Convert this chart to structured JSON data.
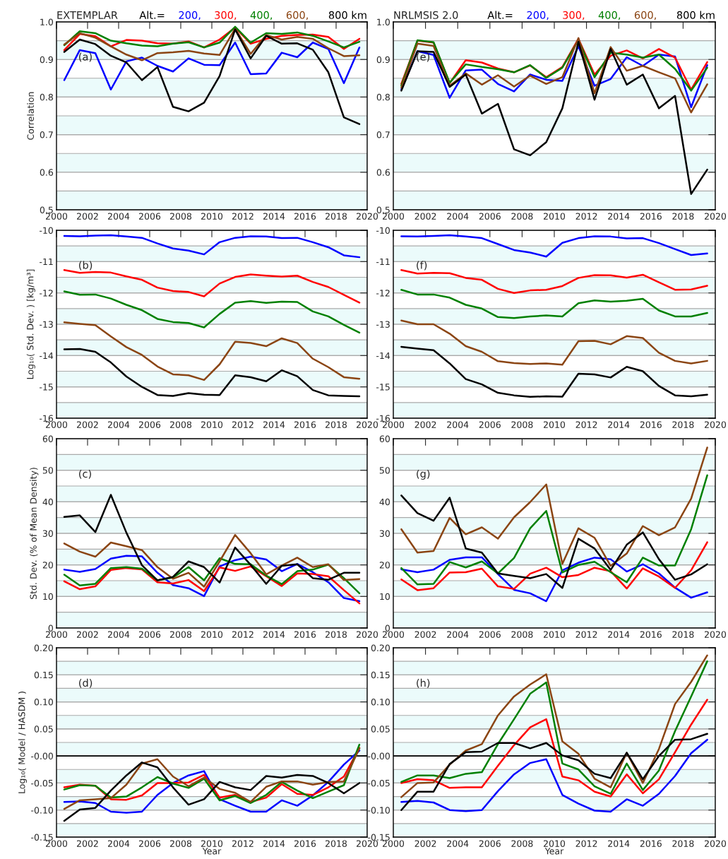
{
  "chart_data": [
    {
      "type": "line",
      "title": "EXTEMPLAR",
      "legend_title": "Alt.=",
      "legend": "top right",
      "ylabel": "Correlation",
      "annotations": [
        "(a)"
      ],
      "grid": "y",
      "x": [
        2000.5,
        2001.5,
        2002.5,
        2003.5,
        2004.5,
        2005.5,
        2006.5,
        2007.5,
        2008.5,
        2009.5,
        2010.5,
        2011.5,
        2012.5,
        2013.5,
        2014.5,
        2015.5,
        2016.5,
        2017.5,
        2018.5,
        2019.5
      ],
      "xlim": [
        2000,
        2020
      ],
      "xticks": [
        2000,
        2002,
        2004,
        2006,
        2008,
        2010,
        2012,
        2014,
        2016,
        2018,
        2020
      ],
      "ylim": [
        0.5,
        1.0
      ],
      "yticks": [
        0.5,
        0.6,
        0.7,
        0.8,
        0.9,
        {
          "value": 1.0,
          "label": "1.0"
        }
      ],
      "bands": [
        {
          "axis": "y",
          "from": 0.5,
          "to": 0.55,
          "color": "#ebfbfb"
        },
        {
          "axis": "y",
          "from": 0.6,
          "to": 0.65,
          "color": "#ebfbfb"
        },
        {
          "axis": "y",
          "from": 0.7,
          "to": 0.75,
          "color": "#ebfbfb"
        },
        {
          "axis": "y",
          "from": 0.8,
          "to": 0.85,
          "color": "#ebfbfb"
        },
        {
          "axis": "y",
          "from": 0.9,
          "to": 0.95,
          "color": "#ebfbfb"
        }
      ],
      "series": [
        {
          "name": "200,",
          "color": "#0000ff",
          "values": [
            0.845,
            0.925,
            0.917,
            0.82,
            0.895,
            0.905,
            0.883,
            0.868,
            0.903,
            0.886,
            0.885,
            0.945,
            0.861,
            0.863,
            0.918,
            0.906,
            0.945,
            0.928,
            0.837,
            0.932
          ]
        },
        {
          "name": "300,",
          "color": "#ff0000",
          "values": [
            0.925,
            0.968,
            0.962,
            0.935,
            0.952,
            0.95,
            0.943,
            0.942,
            0.948,
            0.932,
            0.953,
            0.985,
            0.942,
            0.955,
            0.963,
            0.965,
            0.966,
            0.96,
            0.928,
            0.955
          ]
        },
        {
          "name": "400,",
          "color": "#008000",
          "values": [
            0.938,
            0.975,
            0.97,
            0.95,
            0.943,
            0.937,
            0.935,
            0.942,
            0.946,
            0.932,
            0.945,
            0.987,
            0.945,
            0.97,
            0.968,
            0.972,
            0.963,
            0.948,
            0.932,
            0.947
          ]
        },
        {
          "name": "600,",
          "color": "#8b4513",
          "values": [
            0.94,
            0.97,
            0.958,
            0.935,
            0.913,
            0.898,
            0.917,
            0.919,
            0.923,
            0.916,
            0.912,
            0.982,
            0.915,
            0.965,
            0.953,
            0.96,
            0.955,
            0.93,
            0.909,
            0.911
          ]
        },
        {
          "name": "800 km",
          "color": "#000000",
          "values": [
            0.92,
            0.953,
            0.941,
            0.91,
            0.892,
            0.845,
            0.88,
            0.774,
            0.762,
            0.785,
            0.856,
            0.98,
            0.903,
            0.963,
            0.942,
            0.943,
            0.926,
            0.866,
            0.746,
            0.728
          ]
        }
      ]
    },
    {
      "type": "line",
      "title": "NRLMSIS 2.0",
      "legend_title": "Alt.=",
      "legend": "top right",
      "annotations": [
        "(e)"
      ],
      "grid": "y",
      "x": [
        2000.5,
        2001.5,
        2002.5,
        2003.5,
        2004.5,
        2005.5,
        2006.5,
        2007.5,
        2008.5,
        2009.5,
        2010.5,
        2011.5,
        2012.5,
        2013.5,
        2014.5,
        2015.5,
        2016.5,
        2017.5,
        2018.5,
        2019.5
      ],
      "xlim": [
        2000,
        2020
      ],
      "xticks": [
        2000,
        2002,
        2004,
        2006,
        2008,
        2010,
        2012,
        2014,
        2016,
        2018,
        2020
      ],
      "ylim": [
        0.5,
        1.0
      ],
      "yticks": [
        0.5,
        0.6,
        0.7,
        0.8,
        0.9,
        {
          "value": 1.0,
          "label": "1.0"
        }
      ],
      "bands": [
        {
          "axis": "y",
          "from": 0.5,
          "to": 0.55,
          "color": "#ebfbfb"
        },
        {
          "axis": "y",
          "from": 0.6,
          "to": 0.65,
          "color": "#ebfbfb"
        },
        {
          "axis": "y",
          "from": 0.7,
          "to": 0.75,
          "color": "#ebfbfb"
        },
        {
          "axis": "y",
          "from": 0.8,
          "to": 0.85,
          "color": "#ebfbfb"
        },
        {
          "axis": "y",
          "from": 0.9,
          "to": 0.95,
          "color": "#ebfbfb"
        }
      ],
      "series": [
        {
          "name": "200,",
          "color": "#0000ff",
          "values": [
            0.82,
            0.922,
            0.912,
            0.798,
            0.871,
            0.873,
            0.835,
            0.815,
            0.86,
            0.846,
            0.843,
            0.935,
            0.83,
            0.848,
            0.906,
            0.883,
            0.913,
            0.908,
            0.773,
            0.885
          ]
        },
        {
          "name": "300,",
          "color": "#ff0000",
          "values": [
            0.835,
            0.95,
            0.945,
            0.837,
            0.898,
            0.892,
            0.876,
            0.866,
            0.884,
            0.853,
            0.88,
            0.955,
            0.86,
            0.91,
            0.924,
            0.903,
            0.928,
            0.905,
            0.82,
            0.893
          ]
        },
        {
          "name": "400,",
          "color": "#008000",
          "values": [
            0.83,
            0.951,
            0.946,
            0.838,
            0.887,
            0.88,
            0.874,
            0.866,
            0.885,
            0.851,
            0.878,
            0.952,
            0.853,
            0.918,
            0.913,
            0.905,
            0.913,
            0.875,
            0.817,
            0.878
          ]
        },
        {
          "name": "600,",
          "color": "#8b4513",
          "values": [
            0.825,
            0.942,
            0.936,
            0.83,
            0.863,
            0.833,
            0.858,
            0.828,
            0.857,
            0.835,
            0.853,
            0.957,
            0.81,
            0.933,
            0.87,
            0.883,
            0.866,
            0.85,
            0.759,
            0.834
          ]
        },
        {
          "name": "800 km",
          "color": "#000000",
          "values": [
            0.817,
            0.922,
            0.92,
            0.827,
            0.86,
            0.756,
            0.782,
            0.661,
            0.645,
            0.68,
            0.77,
            0.947,
            0.793,
            0.928,
            0.833,
            0.86,
            0.77,
            0.803,
            0.542,
            0.607
          ]
        }
      ]
    },
    {
      "type": "line",
      "ylabel": "Log₁₀( Std. Dev. ) [kg/m³]",
      "annotations": [
        "(b)"
      ],
      "grid": "y",
      "x": [
        2000.5,
        2001.5,
        2002.5,
        2003.5,
        2004.5,
        2005.5,
        2006.5,
        2007.5,
        2008.5,
        2009.5,
        2010.5,
        2011.5,
        2012.5,
        2013.5,
        2014.5,
        2015.5,
        2016.5,
        2017.5,
        2018.5,
        2019.5
      ],
      "xlim": [
        2000,
        2020
      ],
      "xticks": [
        2000,
        2002,
        2004,
        2006,
        2008,
        2010,
        2012,
        2014,
        2016,
        2018,
        2020
      ],
      "ylim": [
        -16,
        -10
      ],
      "yticks": [
        -16,
        -15,
        -14,
        -13,
        -12,
        -11,
        -10
      ],
      "bands": [
        {
          "axis": "y",
          "from": -16,
          "to": -15.5,
          "color": "#ebfbfb"
        },
        {
          "axis": "y",
          "from": -15,
          "to": -14.5,
          "color": "#ebfbfb"
        },
        {
          "axis": "y",
          "from": -14,
          "to": -13.5,
          "color": "#ebfbfb"
        },
        {
          "axis": "y",
          "from": -13,
          "to": -12.5,
          "color": "#ebfbfb"
        },
        {
          "axis": "y",
          "from": -12,
          "to": -11.5,
          "color": "#ebfbfb"
        },
        {
          "axis": "y",
          "from": -11,
          "to": -10.5,
          "color": "#ebfbfb"
        }
      ],
      "series": [
        {
          "color": "#0000ff",
          "values": [
            -10.18,
            -10.19,
            -10.17,
            -10.16,
            -10.2,
            -10.24,
            -10.42,
            -10.58,
            -10.65,
            -10.77,
            -10.38,
            -10.24,
            -10.19,
            -10.2,
            -10.25,
            -10.24,
            -10.38,
            -10.54,
            -10.8,
            -10.86
          ]
        },
        {
          "color": "#ff0000",
          "values": [
            -11.27,
            -11.36,
            -11.33,
            -11.35,
            -11.47,
            -11.58,
            -11.83,
            -11.94,
            -11.97,
            -12.11,
            -11.7,
            -11.49,
            -11.41,
            -11.45,
            -11.48,
            -11.45,
            -11.65,
            -11.81,
            -12.06,
            -12.31
          ]
        },
        {
          "color": "#008000",
          "values": [
            -11.95,
            -12.06,
            -12.05,
            -12.18,
            -12.38,
            -12.55,
            -12.83,
            -12.93,
            -12.96,
            -13.1,
            -12.67,
            -12.31,
            -12.26,
            -12.32,
            -12.28,
            -12.29,
            -12.59,
            -12.75,
            -13.02,
            -13.27
          ]
        },
        {
          "color": "#8b4513",
          "values": [
            -12.94,
            -12.99,
            -13.03,
            -13.39,
            -13.73,
            -13.98,
            -14.35,
            -14.6,
            -14.63,
            -14.78,
            -14.28,
            -13.56,
            -13.6,
            -13.7,
            -13.45,
            -13.6,
            -14.1,
            -14.37,
            -14.69,
            -14.74
          ]
        },
        {
          "color": "#000000",
          "values": [
            -13.8,
            -13.79,
            -13.88,
            -14.22,
            -14.67,
            -15.0,
            -15.26,
            -15.29,
            -15.2,
            -15.25,
            -15.26,
            -14.63,
            -14.69,
            -14.82,
            -14.47,
            -14.66,
            -15.1,
            -15.27,
            -15.29,
            -15.3
          ]
        }
      ]
    },
    {
      "type": "line",
      "annotations": [
        "(f)"
      ],
      "grid": "y",
      "x": [
        2000.5,
        2001.5,
        2002.5,
        2003.5,
        2004.5,
        2005.5,
        2006.5,
        2007.5,
        2008.5,
        2009.5,
        2010.5,
        2011.5,
        2012.5,
        2013.5,
        2014.5,
        2015.5,
        2016.5,
        2017.5,
        2018.5,
        2019.5
      ],
      "xlim": [
        2000,
        2020
      ],
      "xticks": [
        2000,
        2002,
        2004,
        2006,
        2008,
        2010,
        2012,
        2014,
        2016,
        2018,
        2020
      ],
      "ylim": [
        -16,
        -10
      ],
      "yticks": [
        -16,
        -15,
        -14,
        -13,
        -12,
        -11,
        -10
      ],
      "bands": [
        {
          "axis": "y",
          "from": -16,
          "to": -15.5,
          "color": "#ebfbfb"
        },
        {
          "axis": "y",
          "from": -15,
          "to": -14.5,
          "color": "#ebfbfb"
        },
        {
          "axis": "y",
          "from": -14,
          "to": -13.5,
          "color": "#ebfbfb"
        },
        {
          "axis": "y",
          "from": -13,
          "to": -12.5,
          "color": "#ebfbfb"
        },
        {
          "axis": "y",
          "from": -12,
          "to": -11.5,
          "color": "#ebfbfb"
        },
        {
          "axis": "y",
          "from": -11,
          "to": -10.5,
          "color": "#ebfbfb"
        }
      ],
      "series": [
        {
          "color": "#0000ff",
          "values": [
            -10.19,
            -10.2,
            -10.18,
            -10.16,
            -10.2,
            -10.25,
            -10.44,
            -10.63,
            -10.71,
            -10.84,
            -10.4,
            -10.25,
            -10.19,
            -10.2,
            -10.26,
            -10.25,
            -10.41,
            -10.6,
            -10.79,
            -10.74
          ]
        },
        {
          "color": "#ff0000",
          "values": [
            -11.27,
            -11.38,
            -11.36,
            -11.37,
            -11.52,
            -11.58,
            -11.87,
            -12.0,
            -11.92,
            -11.9,
            -11.78,
            -11.52,
            -11.43,
            -11.44,
            -11.51,
            -11.42,
            -11.66,
            -11.9,
            -11.89,
            -11.77
          ]
        },
        {
          "color": "#008000",
          "values": [
            -11.9,
            -12.05,
            -12.05,
            -12.15,
            -12.38,
            -12.5,
            -12.77,
            -12.8,
            -12.75,
            -12.72,
            -12.75,
            -12.33,
            -12.24,
            -12.28,
            -12.25,
            -12.19,
            -12.56,
            -12.75,
            -12.75,
            -12.64
          ]
        },
        {
          "color": "#8b4513",
          "values": [
            -12.88,
            -13.0,
            -13.0,
            -13.3,
            -13.7,
            -13.88,
            -14.18,
            -14.24,
            -14.27,
            -14.25,
            -14.29,
            -13.54,
            -13.53,
            -13.64,
            -13.38,
            -13.44,
            -13.91,
            -14.17,
            -14.25,
            -14.17
          ]
        },
        {
          "color": "#000000",
          "values": [
            -13.72,
            -13.78,
            -13.83,
            -14.25,
            -14.75,
            -14.92,
            -15.19,
            -15.27,
            -15.32,
            -15.3,
            -15.31,
            -14.58,
            -14.6,
            -14.7,
            -14.36,
            -14.5,
            -14.97,
            -15.27,
            -15.3,
            -15.25
          ]
        }
      ]
    },
    {
      "type": "line",
      "ylabel": "Std. Dev. (% of Mean Density)",
      "annotations": [
        "(c)"
      ],
      "grid": "y",
      "x": [
        2000.5,
        2001.5,
        2002.5,
        2003.5,
        2004.5,
        2005.5,
        2006.5,
        2007.5,
        2008.5,
        2009.5,
        2010.5,
        2011.5,
        2012.5,
        2013.5,
        2014.5,
        2015.5,
        2016.5,
        2017.5,
        2018.5,
        2019.5
      ],
      "xlim": [
        2000,
        2020
      ],
      "xticks": [
        2000,
        2002,
        2004,
        2006,
        2008,
        2010,
        2012,
        2014,
        2016,
        2018,
        2020
      ],
      "ylim": [
        0,
        60
      ],
      "yticks": [
        0,
        10,
        20,
        30,
        40,
        50,
        60
      ],
      "bands": [
        {
          "axis": "y",
          "from": 0,
          "to": 5,
          "color": "#ebfbfb"
        },
        {
          "axis": "y",
          "from": 10,
          "to": 15,
          "color": "#ebfbfb"
        },
        {
          "axis": "y",
          "from": 20,
          "to": 25,
          "color": "#ebfbfb"
        },
        {
          "axis": "y",
          "from": 30,
          "to": 35,
          "color": "#ebfbfb"
        },
        {
          "axis": "y",
          "from": 40,
          "to": 45,
          "color": "#ebfbfb"
        },
        {
          "axis": "y",
          "from": 50,
          "to": 55,
          "color": "#ebfbfb"
        }
      ],
      "series": [
        {
          "color": "#0000ff",
          "values": [
            18.5,
            17.8,
            18.7,
            22,
            22.9,
            22.7,
            17.5,
            13.6,
            12.6,
            10.1,
            19.5,
            21.5,
            22.6,
            21.7,
            18,
            20.3,
            17.7,
            14.5,
            9.5,
            8.5
          ]
        },
        {
          "color": "#ff0000",
          "values": [
            14.8,
            12.3,
            13.2,
            18.4,
            19,
            18.6,
            14.5,
            14.1,
            15.2,
            11.7,
            19.2,
            18.1,
            19.5,
            16.4,
            13.3,
            17.3,
            17.1,
            16.4,
            12,
            7.8
          ]
        },
        {
          "color": "#008000",
          "values": [
            16.9,
            13.5,
            14,
            19,
            19.3,
            18.8,
            15.1,
            16,
            19.3,
            15.1,
            22.1,
            20.3,
            20.2,
            16.6,
            13.9,
            18,
            18.5,
            20.1,
            15.8,
            11
          ]
        },
        {
          "color": "#8b4513",
          "values": [
            26.8,
            24.2,
            22.6,
            27.1,
            25.9,
            24.7,
            19.3,
            15.6,
            17.5,
            13.1,
            21.1,
            29.5,
            23.7,
            17,
            19.8,
            22.3,
            19.3,
            20.2,
            15.2,
            15.5
          ]
        },
        {
          "color": "#000000",
          "values": [
            35.2,
            35.7,
            30.4,
            42.2,
            30.2,
            19.9,
            15.1,
            16.2,
            21.1,
            19.3,
            14.4,
            25.5,
            20,
            14,
            19.7,
            20.2,
            15.8,
            15.3,
            17.5,
            17.5
          ]
        }
      ]
    },
    {
      "type": "line",
      "annotations": [
        "(g)"
      ],
      "grid": "y",
      "x": [
        2000.5,
        2001.5,
        2002.5,
        2003.5,
        2004.5,
        2005.5,
        2006.5,
        2007.5,
        2008.5,
        2009.5,
        2010.5,
        2011.5,
        2012.5,
        2013.5,
        2014.5,
        2015.5,
        2016.5,
        2017.5,
        2018.5,
        2019.5
      ],
      "xlim": [
        2000,
        2020
      ],
      "xticks": [
        2000,
        2002,
        2004,
        2006,
        2008,
        2010,
        2012,
        2014,
        2016,
        2018,
        2020
      ],
      "ylim": [
        0,
        60
      ],
      "yticks": [
        0,
        10,
        20,
        30,
        40,
        50,
        60
      ],
      "bands": [
        {
          "axis": "y",
          "from": 0,
          "to": 5,
          "color": "#ebfbfb"
        },
        {
          "axis": "y",
          "from": 10,
          "to": 15,
          "color": "#ebfbfb"
        },
        {
          "axis": "y",
          "from": 20,
          "to": 25,
          "color": "#ebfbfb"
        },
        {
          "axis": "y",
          "from": 30,
          "to": 35,
          "color": "#ebfbfb"
        },
        {
          "axis": "y",
          "from": 40,
          "to": 45,
          "color": "#ebfbfb"
        },
        {
          "axis": "y",
          "from": 50,
          "to": 55,
          "color": "#ebfbfb"
        }
      ],
      "series": [
        {
          "color": "#0000ff",
          "values": [
            18.6,
            17.7,
            18.5,
            21.6,
            22.4,
            22.4,
            17.1,
            12.1,
            11,
            8.5,
            18.3,
            20.7,
            22.3,
            21.8,
            17.9,
            20.2,
            17.3,
            12.8,
            9.6,
            11.3
          ]
        },
        {
          "color": "#ff0000",
          "values": [
            15.4,
            12,
            12.6,
            17.6,
            17.7,
            18.8,
            13.2,
            12.4,
            17.2,
            19.1,
            16.1,
            16.8,
            19.1,
            18,
            12.5,
            18.9,
            16.3,
            12.7,
            18.3,
            27.2
          ]
        },
        {
          "color": "#008000",
          "values": [
            19,
            13.8,
            14,
            20.9,
            19.2,
            21.1,
            17.3,
            22.2,
            31.6,
            37.1,
            17.6,
            20,
            21,
            17.7,
            14.5,
            22.3,
            19.8,
            19.8,
            31.3,
            48.4
          ]
        },
        {
          "color": "#8b4513",
          "values": [
            31.3,
            23.9,
            24.4,
            34.9,
            29.7,
            31.9,
            28.3,
            35.1,
            39.9,
            45.5,
            20.3,
            31.6,
            28.6,
            19.7,
            23.6,
            32.3,
            29.4,
            31.9,
            41,
            57.2
          ]
        },
        {
          "color": "#000000",
          "values": [
            42,
            36.4,
            34,
            41.3,
            25.2,
            23.9,
            17.3,
            16.5,
            15.8,
            17.1,
            12.7,
            28.3,
            25.2,
            18.4,
            26.4,
            30.3,
            21.8,
            15.3,
            17,
            20.2
          ]
        }
      ]
    },
    {
      "type": "line",
      "ylabel": "Log₁₀( Model / HASDM )",
      "xlabel": "Year",
      "annotations": [
        "(d)"
      ],
      "grid": "y",
      "x": [
        2000.5,
        2001.5,
        2002.5,
        2003.5,
        2004.5,
        2005.5,
        2006.5,
        2007.5,
        2008.5,
        2009.5,
        2010.5,
        2011.5,
        2012.5,
        2013.5,
        2014.5,
        2015.5,
        2016.5,
        2017.5,
        2018.5,
        2019.5
      ],
      "xlim": [
        2000,
        2020
      ],
      "xticks": [
        2000,
        2002,
        2004,
        2006,
        2008,
        2010,
        2012,
        2014,
        2016,
        2018,
        2020
      ],
      "ylim": [
        -0.15,
        0.2
      ],
      "yticks": [
        -0.15,
        {
          "value": -0.1,
          "label": "-0.10"
        },
        -0.05,
        {
          "value": 0,
          "label": "-0.00"
        },
        0.05,
        {
          "value": 0.1,
          "label": "0.10"
        },
        0.15,
        {
          "value": 0.2,
          "label": "0.20"
        }
      ],
      "ref_lines": [
        {
          "axis": "y",
          "value": 0,
          "color": "#000000"
        }
      ],
      "bands": [
        {
          "axis": "y",
          "from": -0.15,
          "to": -0.125,
          "color": "#ebfbfb"
        },
        {
          "axis": "y",
          "from": -0.1,
          "to": -0.075,
          "color": "#ebfbfb"
        },
        {
          "axis": "y",
          "from": -0.05,
          "to": -0.025,
          "color": "#ebfbfb"
        },
        {
          "axis": "y",
          "from": 0,
          "to": 0.025,
          "color": "#ebfbfb"
        },
        {
          "axis": "y",
          "from": 0.05,
          "to": 0.075,
          "color": "#ebfbfb"
        },
        {
          "axis": "y",
          "from": 0.1,
          "to": 0.125,
          "color": "#ebfbfb"
        },
        {
          "axis": "y",
          "from": 0.15,
          "to": 0.175,
          "color": "#ebfbfb"
        }
      ],
      "series": [
        {
          "color": "#0000ff",
          "values": [
            -0.085,
            -0.084,
            -0.087,
            -0.103,
            -0.105,
            -0.103,
            -0.072,
            -0.05,
            -0.036,
            -0.028,
            -0.08,
            -0.092,
            -0.103,
            -0.103,
            -0.082,
            -0.092,
            -0.073,
            -0.048,
            -0.016,
            0.01
          ]
        },
        {
          "color": "#ff0000",
          "values": [
            -0.058,
            -0.053,
            -0.055,
            -0.08,
            -0.081,
            -0.073,
            -0.05,
            -0.05,
            -0.049,
            -0.035,
            -0.077,
            -0.072,
            -0.085,
            -0.077,
            -0.052,
            -0.07,
            -0.072,
            -0.058,
            -0.038,
            0.015
          ]
        },
        {
          "color": "#008000",
          "values": [
            -0.062,
            -0.054,
            -0.055,
            -0.077,
            -0.075,
            -0.058,
            -0.039,
            -0.051,
            -0.059,
            -0.042,
            -0.082,
            -0.074,
            -0.087,
            -0.072,
            -0.048,
            -0.064,
            -0.078,
            -0.066,
            -0.054,
            0.021
          ]
        },
        {
          "color": "#8b4513",
          "values": [
            -0.098,
            -0.082,
            -0.08,
            -0.078,
            -0.053,
            -0.014,
            -0.006,
            -0.038,
            -0.056,
            -0.04,
            -0.061,
            -0.068,
            -0.085,
            -0.057,
            -0.047,
            -0.047,
            -0.053,
            -0.048,
            -0.047,
            0.014
          ]
        },
        {
          "color": "#000000",
          "values": [
            -0.12,
            -0.099,
            -0.096,
            -0.064,
            -0.036,
            -0.012,
            -0.021,
            -0.058,
            -0.09,
            -0.08,
            -0.048,
            -0.058,
            -0.063,
            -0.037,
            -0.04,
            -0.035,
            -0.037,
            -0.05,
            -0.069,
            -0.05
          ]
        }
      ]
    },
    {
      "type": "line",
      "xlabel": "Year",
      "annotations": [
        "(h)"
      ],
      "grid": "y",
      "x": [
        2000.5,
        2001.5,
        2002.5,
        2003.5,
        2004.5,
        2005.5,
        2006.5,
        2007.5,
        2008.5,
        2009.5,
        2010.5,
        2011.5,
        2012.5,
        2013.5,
        2014.5,
        2015.5,
        2016.5,
        2017.5,
        2018.5,
        2019.5
      ],
      "xlim": [
        2000,
        2020
      ],
      "xticks": [
        2000,
        2002,
        2004,
        2006,
        2008,
        2010,
        2012,
        2014,
        2016,
        2018,
        2020
      ],
      "ylim": [
        -0.15,
        0.2
      ],
      "yticks": [
        -0.15,
        {
          "value": -0.1,
          "label": "-0.10"
        },
        -0.05,
        {
          "value": 0,
          "label": "-0.00"
        },
        0.05,
        {
          "value": 0.1,
          "label": "0.10"
        },
        0.15,
        {
          "value": 0.2,
          "label": "0.20"
        }
      ],
      "ref_lines": [
        {
          "axis": "y",
          "value": 0,
          "color": "#000000"
        }
      ],
      "bands": [
        {
          "axis": "y",
          "from": -0.15,
          "to": -0.125,
          "color": "#ebfbfb"
        },
        {
          "axis": "y",
          "from": -0.1,
          "to": -0.075,
          "color": "#ebfbfb"
        },
        {
          "axis": "y",
          "from": -0.05,
          "to": -0.025,
          "color": "#ebfbfb"
        },
        {
          "axis": "y",
          "from": 0,
          "to": 0.025,
          "color": "#ebfbfb"
        },
        {
          "axis": "y",
          "from": 0.05,
          "to": 0.075,
          "color": "#ebfbfb"
        },
        {
          "axis": "y",
          "from": 0.1,
          "to": 0.125,
          "color": "#ebfbfb"
        },
        {
          "axis": "y",
          "from": 0.15,
          "to": 0.175,
          "color": "#ebfbfb"
        }
      ],
      "series": [
        {
          "color": "#0000ff",
          "values": [
            -0.085,
            -0.083,
            -0.086,
            -0.1,
            -0.102,
            -0.1,
            -0.065,
            -0.034,
            -0.013,
            -0.006,
            -0.072,
            -0.088,
            -0.101,
            -0.103,
            -0.08,
            -0.092,
            -0.07,
            -0.037,
            0.005,
            0.03
          ]
        },
        {
          "color": "#ff0000",
          "values": [
            -0.05,
            -0.043,
            -0.045,
            -0.059,
            -0.058,
            -0.058,
            -0.018,
            0.02,
            0.053,
            0.068,
            -0.038,
            -0.045,
            -0.066,
            -0.075,
            -0.034,
            -0.069,
            -0.043,
            0.007,
            0.058,
            0.104
          ]
        },
        {
          "color": "#008000",
          "values": [
            -0.048,
            -0.036,
            -0.036,
            -0.041,
            -0.033,
            -0.03,
            0.022,
            0.068,
            0.115,
            0.136,
            -0.014,
            -0.025,
            -0.056,
            -0.07,
            -0.014,
            -0.063,
            -0.027,
            0.046,
            0.11,
            0.175
          ]
        },
        {
          "color": "#8b4513",
          "values": [
            -0.076,
            -0.05,
            -0.049,
            -0.016,
            0.01,
            0.022,
            0.075,
            0.11,
            0.132,
            0.151,
            0.027,
            0.004,
            -0.042,
            -0.058,
            0.006,
            -0.05,
            0.013,
            0.096,
            0.137,
            0.186
          ]
        },
        {
          "color": "#000000",
          "values": [
            -0.1,
            -0.066,
            -0.066,
            -0.015,
            0.007,
            0.008,
            0.024,
            0.024,
            0.014,
            0.024,
            0.001,
            -0.008,
            -0.033,
            -0.041,
            0.006,
            -0.043,
            0.0,
            0.03,
            0.031,
            0.041
          ]
        }
      ]
    }
  ]
}
